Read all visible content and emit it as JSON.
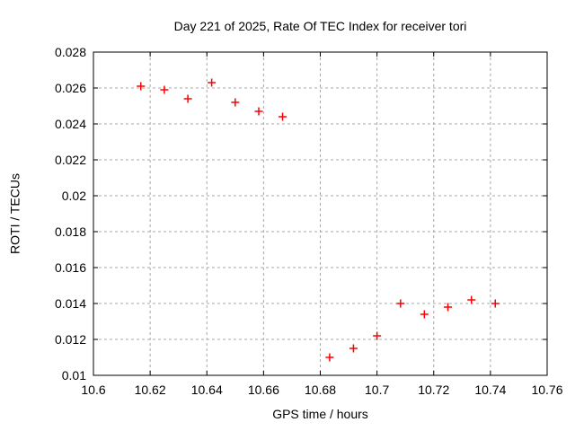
{
  "chart_data": {
    "type": "scatter",
    "title": "Day 221 of 2025, Rate Of TEC Index for receiver tori",
    "xlabel": "GPS time / hours",
    "ylabel": "ROTI / TECUs",
    "xlim": [
      10.6,
      10.76
    ],
    "ylim": [
      0.01,
      0.028
    ],
    "grid": true,
    "legend": "none",
    "background_color": "#ffffff",
    "frame_color": "#000000",
    "grid_color": "#a8a8a8",
    "marker": {
      "style": "plus",
      "color": "#ff0000",
      "size": 9
    },
    "x_ticks": {
      "values": [
        10.6,
        10.62,
        10.64,
        10.66,
        10.68,
        10.7,
        10.72,
        10.74,
        10.76
      ],
      "labels": [
        "10.6",
        "10.62",
        "10.64",
        "10.66",
        "10.68",
        "10.7",
        "10.72",
        "10.74",
        "10.76"
      ]
    },
    "y_ticks": {
      "values": [
        0.01,
        0.012,
        0.014,
        0.016,
        0.018,
        0.02,
        0.022,
        0.024,
        0.026,
        0.028
      ],
      "labels": [
        "0.01",
        "0.012",
        "0.014",
        "0.016",
        "0.018",
        "0.02",
        "0.022",
        "0.024",
        "0.026",
        "0.028"
      ]
    },
    "series": [
      {
        "name": "ROTI",
        "points": [
          [
            10.6167,
            0.0261
          ],
          [
            10.625,
            0.0259
          ],
          [
            10.6333,
            0.0254
          ],
          [
            10.6417,
            0.0263
          ],
          [
            10.65,
            0.0252
          ],
          [
            10.6583,
            0.0247
          ],
          [
            10.6667,
            0.0244
          ],
          [
            10.6833,
            0.011
          ],
          [
            10.6917,
            0.0115
          ],
          [
            10.7,
            0.0122
          ],
          [
            10.7083,
            0.014
          ],
          [
            10.7167,
            0.0134
          ],
          [
            10.725,
            0.0138
          ],
          [
            10.7333,
            0.0142
          ],
          [
            10.7417,
            0.014
          ]
        ]
      }
    ]
  }
}
